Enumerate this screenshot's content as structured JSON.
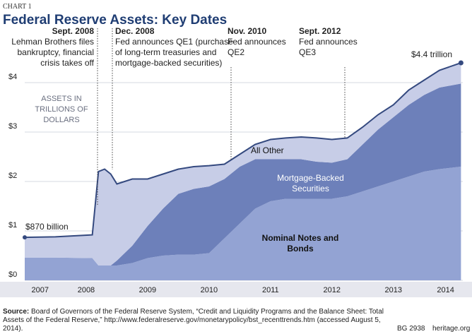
{
  "header": {
    "chart_number": "CHART 1",
    "title": "Federal Reserve Assets: Key Dates"
  },
  "chart_data": {
    "type": "stacked-area",
    "y_axis_label": "ASSETS IN TRILLIONS OF DOLLARS",
    "x": [
      2007.5,
      2008.0,
      2008.6,
      2008.7,
      2008.8,
      2008.9,
      2009.0,
      2009.25,
      2009.5,
      2009.75,
      2010.0,
      2010.25,
      2010.5,
      2010.75,
      2011.0,
      2011.25,
      2011.5,
      2011.75,
      2012.0,
      2012.25,
      2012.5,
      2012.75,
      2013.0,
      2013.25,
      2013.5,
      2013.75,
      2014.0,
      2014.25,
      2014.6
    ],
    "series": [
      {
        "name": "Nominal Notes and Bonds",
        "color": "#93a3d3",
        "values": [
          0.46,
          0.46,
          0.45,
          0.3,
          0.3,
          0.3,
          0.3,
          0.35,
          0.45,
          0.5,
          0.52,
          0.52,
          0.55,
          0.85,
          1.15,
          1.45,
          1.6,
          1.65,
          1.65,
          1.65,
          1.65,
          1.7,
          1.8,
          1.9,
          2.0,
          2.1,
          2.2,
          2.25,
          2.3
        ]
      },
      {
        "name": "Mortgage-Backed Securities",
        "color": "#6d80ba",
        "values": [
          0,
          0,
          0,
          0,
          0,
          0,
          0.1,
          0.35,
          0.65,
          0.95,
          1.23,
          1.33,
          1.35,
          1.2,
          1.15,
          1.0,
          0.85,
          0.8,
          0.8,
          0.75,
          0.73,
          0.75,
          0.95,
          1.15,
          1.3,
          1.45,
          1.55,
          1.65,
          1.68
        ]
      },
      {
        "name": "All Other",
        "color": "#c7cde7",
        "values": [
          0.41,
          0.42,
          0.47,
          1.9,
          1.95,
          1.85,
          1.55,
          1.35,
          0.95,
          0.7,
          0.5,
          0.45,
          0.42,
          0.3,
          0.25,
          0.3,
          0.4,
          0.43,
          0.45,
          0.48,
          0.47,
          0.43,
          0.35,
          0.3,
          0.25,
          0.3,
          0.3,
          0.35,
          0.42
        ]
      }
    ],
    "xlim": [
      2007.5,
      2014.63
    ],
    "xticks": [
      {
        "value": 2007.75,
        "label": "2007"
      },
      {
        "value": 2008.5,
        "label": "2008"
      },
      {
        "value": 2009.5,
        "label": "2009"
      },
      {
        "value": 2010.5,
        "label": "2010"
      },
      {
        "value": 2011.5,
        "label": "2011"
      },
      {
        "value": 2012.5,
        "label": "2012"
      },
      {
        "value": 2013.5,
        "label": "2013"
      },
      {
        "value": 2014.35,
        "label": "2014"
      }
    ],
    "ylim": [
      0,
      4.8
    ],
    "yticks": [
      {
        "value": 0,
        "label": "$0"
      },
      {
        "value": 1,
        "label": "$1"
      },
      {
        "value": 2,
        "label": "$2"
      },
      {
        "value": 3,
        "label": "$3"
      },
      {
        "value": 4,
        "label": "$4"
      }
    ],
    "grid": true,
    "start_label": "$870 billion",
    "end_label": "$4.4 trillion",
    "annotations": [
      {
        "date": "Sept. 2008",
        "lines": [
          "Lehman Brothers files",
          "bankruptcy, financial",
          "crisis takes off"
        ]
      },
      {
        "date": "Dec. 2008",
        "lines": [
          "Fed announces QE1 (purchase",
          "of long-term treasuries and",
          "mortgage-backed securities)"
        ]
      },
      {
        "date": "Nov. 2010",
        "lines": [
          "Fed announces",
          "QE2"
        ]
      },
      {
        "date": "Sept. 2012",
        "lines": [
          "Fed announces",
          "QE3"
        ]
      }
    ]
  },
  "footer": {
    "source_label": "Source:",
    "source": "Board of Governors of the Federal Reserve System, “Credit and Liquidity Programs and the Balance Sheet: Total Assets of the Federal Reserve,” http://www.federalreserve.gov/monetarypolicy/bst_recenttrends.htm (accessed August 5, 2014).",
    "code": "BG 2938",
    "site": "heritage.org"
  }
}
